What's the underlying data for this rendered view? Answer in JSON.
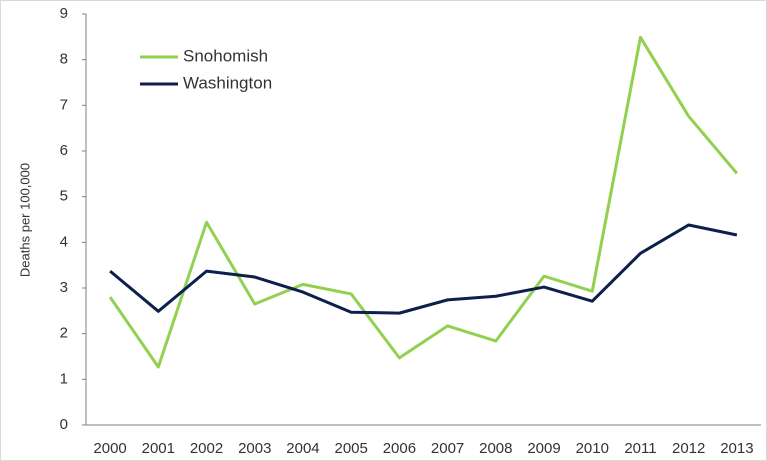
{
  "chart_data": {
    "type": "line",
    "ylabel": "Deaths per 100,000",
    "categories": [
      "2000",
      "2001",
      "2002",
      "2003",
      "2004",
      "2005",
      "2006",
      "2007",
      "2008",
      "2009",
      "2010",
      "2011",
      "2012",
      "2013"
    ],
    "series": [
      {
        "name": "Snohomish",
        "color": "#92d050",
        "values": [
          2.8,
          1.27,
          4.44,
          2.65,
          3.08,
          2.87,
          1.47,
          2.17,
          1.84,
          3.26,
          2.93,
          8.49,
          6.76,
          5.51
        ]
      },
      {
        "name": "Washington",
        "color": "#0d1f4c",
        "values": [
          3.37,
          2.49,
          3.37,
          3.24,
          2.91,
          2.47,
          2.45,
          2.74,
          2.82,
          3.02,
          2.71,
          3.76,
          4.38,
          4.16
        ]
      }
    ],
    "ylim": [
      0,
      9
    ],
    "yticks": [
      0,
      1,
      2,
      3,
      4,
      5,
      6,
      7,
      8,
      9
    ],
    "grid": false,
    "legend": "upper left"
  }
}
